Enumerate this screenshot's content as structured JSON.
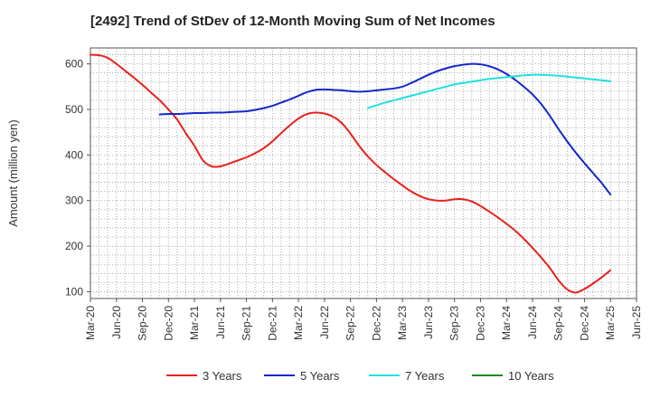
{
  "chart_data": {
    "type": "line",
    "title": "[2492]  Trend of StDev of 12-Month Moving Sum of Net Incomes",
    "ylabel": "Amount (million yen)",
    "xlabel": "",
    "ylim": [
      85,
      635
    ],
    "yticks": [
      100,
      200,
      300,
      400,
      500,
      600
    ],
    "xlim": [
      "2020-03",
      "2025-06"
    ],
    "xticks": [
      "Mar-20",
      "Jun-20",
      "Sep-20",
      "Dec-20",
      "Mar-21",
      "Jun-21",
      "Sep-21",
      "Dec-21",
      "Mar-22",
      "Jun-22",
      "Sep-22",
      "Dec-22",
      "Mar-23",
      "Jun-23",
      "Sep-23",
      "Dec-23",
      "Mar-24",
      "Jun-24",
      "Sep-24",
      "Dec-24",
      "Mar-25",
      "Jun-25"
    ],
    "grid": true,
    "legend_position": "bottom",
    "series": [
      {
        "name": "3 Years",
        "color": "#e8211c",
        "points": [
          [
            "2020-03",
            620
          ],
          [
            "2020-04",
            619
          ],
          [
            "2020-05",
            613
          ],
          [
            "2020-06",
            600
          ],
          [
            "2020-07",
            585
          ],
          [
            "2020-08",
            570
          ],
          [
            "2020-09",
            554
          ],
          [
            "2020-10",
            537
          ],
          [
            "2020-11",
            520
          ],
          [
            "2020-12",
            500
          ],
          [
            "2021-01",
            478
          ],
          [
            "2021-02",
            448
          ],
          [
            "2021-03",
            420
          ],
          [
            "2021-04",
            388
          ],
          [
            "2021-05",
            375
          ],
          [
            "2021-06",
            375
          ],
          [
            "2021-07",
            381
          ],
          [
            "2021-08",
            388
          ],
          [
            "2021-09",
            395
          ],
          [
            "2021-10",
            404
          ],
          [
            "2021-11",
            415
          ],
          [
            "2021-12",
            430
          ],
          [
            "2022-01",
            448
          ],
          [
            "2022-02",
            465
          ],
          [
            "2022-03",
            480
          ],
          [
            "2022-04",
            490
          ],
          [
            "2022-05",
            493
          ],
          [
            "2022-06",
            491
          ],
          [
            "2022-07",
            484
          ],
          [
            "2022-08",
            470
          ],
          [
            "2022-09",
            447
          ],
          [
            "2022-10",
            420
          ],
          [
            "2022-11",
            397
          ],
          [
            "2022-12",
            378
          ],
          [
            "2023-01",
            362
          ],
          [
            "2023-02",
            347
          ],
          [
            "2023-03",
            333
          ],
          [
            "2023-04",
            320
          ],
          [
            "2023-05",
            310
          ],
          [
            "2023-06",
            303
          ],
          [
            "2023-07",
            300
          ],
          [
            "2023-08",
            300
          ],
          [
            "2023-09",
            303
          ],
          [
            "2023-10",
            303
          ],
          [
            "2023-11",
            298
          ],
          [
            "2023-12",
            288
          ],
          [
            "2024-01",
            276
          ],
          [
            "2024-02",
            263
          ],
          [
            "2024-03",
            249
          ],
          [
            "2024-04",
            234
          ],
          [
            "2024-05",
            216
          ],
          [
            "2024-06",
            196
          ],
          [
            "2024-07",
            175
          ],
          [
            "2024-08",
            152
          ],
          [
            "2024-09",
            125
          ],
          [
            "2024-10",
            105
          ],
          [
            "2024-11",
            98
          ],
          [
            "2024-12",
            106
          ],
          [
            "2025-01",
            118
          ],
          [
            "2025-02",
            132
          ],
          [
            "2025-03",
            147
          ]
        ]
      },
      {
        "name": "5 Years",
        "color": "#1428c8",
        "points": [
          [
            "2020-11",
            489
          ],
          [
            "2020-12",
            490
          ],
          [
            "2021-01",
            490
          ],
          [
            "2021-02",
            491
          ],
          [
            "2021-03",
            492
          ],
          [
            "2021-04",
            492
          ],
          [
            "2021-05",
            493
          ],
          [
            "2021-06",
            493
          ],
          [
            "2021-07",
            494
          ],
          [
            "2021-08",
            495
          ],
          [
            "2021-09",
            496
          ],
          [
            "2021-10",
            499
          ],
          [
            "2021-11",
            503
          ],
          [
            "2021-12",
            508
          ],
          [
            "2022-01",
            515
          ],
          [
            "2022-02",
            522
          ],
          [
            "2022-03",
            530
          ],
          [
            "2022-04",
            538
          ],
          [
            "2022-05",
            543
          ],
          [
            "2022-06",
            544
          ],
          [
            "2022-07",
            543
          ],
          [
            "2022-08",
            542
          ],
          [
            "2022-09",
            540
          ],
          [
            "2022-10",
            539
          ],
          [
            "2022-11",
            540
          ],
          [
            "2022-12",
            542
          ],
          [
            "2023-01",
            544
          ],
          [
            "2023-02",
            546
          ],
          [
            "2023-03",
            550
          ],
          [
            "2023-04",
            558
          ],
          [
            "2023-05",
            567
          ],
          [
            "2023-06",
            576
          ],
          [
            "2023-07",
            584
          ],
          [
            "2023-08",
            590
          ],
          [
            "2023-09",
            595
          ],
          [
            "2023-10",
            598
          ],
          [
            "2023-11",
            600
          ],
          [
            "2023-12",
            599
          ],
          [
            "2024-01",
            595
          ],
          [
            "2024-02",
            588
          ],
          [
            "2024-03",
            578
          ],
          [
            "2024-04",
            565
          ],
          [
            "2024-05",
            550
          ],
          [
            "2024-06",
            533
          ],
          [
            "2024-07",
            512
          ],
          [
            "2024-08",
            486
          ],
          [
            "2024-09",
            457
          ],
          [
            "2024-10",
            430
          ],
          [
            "2024-11",
            405
          ],
          [
            "2024-12",
            382
          ],
          [
            "2025-01",
            360
          ],
          [
            "2025-02",
            338
          ],
          [
            "2025-03",
            313
          ]
        ]
      },
      {
        "name": "7 Years",
        "color": "#21e0e0",
        "points": [
          [
            "2022-11",
            503
          ],
          [
            "2022-12",
            509
          ],
          [
            "2023-01",
            515
          ],
          [
            "2023-02",
            520
          ],
          [
            "2023-03",
            525
          ],
          [
            "2023-04",
            530
          ],
          [
            "2023-05",
            535
          ],
          [
            "2023-06",
            540
          ],
          [
            "2023-07",
            545
          ],
          [
            "2023-08",
            550
          ],
          [
            "2023-09",
            555
          ],
          [
            "2023-10",
            558
          ],
          [
            "2023-11",
            561
          ],
          [
            "2023-12",
            564
          ],
          [
            "2024-01",
            567
          ],
          [
            "2024-02",
            569
          ],
          [
            "2024-03",
            571
          ],
          [
            "2024-04",
            573
          ],
          [
            "2024-05",
            575
          ],
          [
            "2024-06",
            576
          ],
          [
            "2024-07",
            576
          ],
          [
            "2024-08",
            575
          ],
          [
            "2024-09",
            574
          ],
          [
            "2024-10",
            572
          ],
          [
            "2024-11",
            570
          ],
          [
            "2024-12",
            568
          ],
          [
            "2025-01",
            566
          ],
          [
            "2025-02",
            564
          ],
          [
            "2025-03",
            562
          ]
        ]
      },
      {
        "name": "10 Years",
        "color": "#1a8a1a",
        "points": []
      }
    ]
  }
}
